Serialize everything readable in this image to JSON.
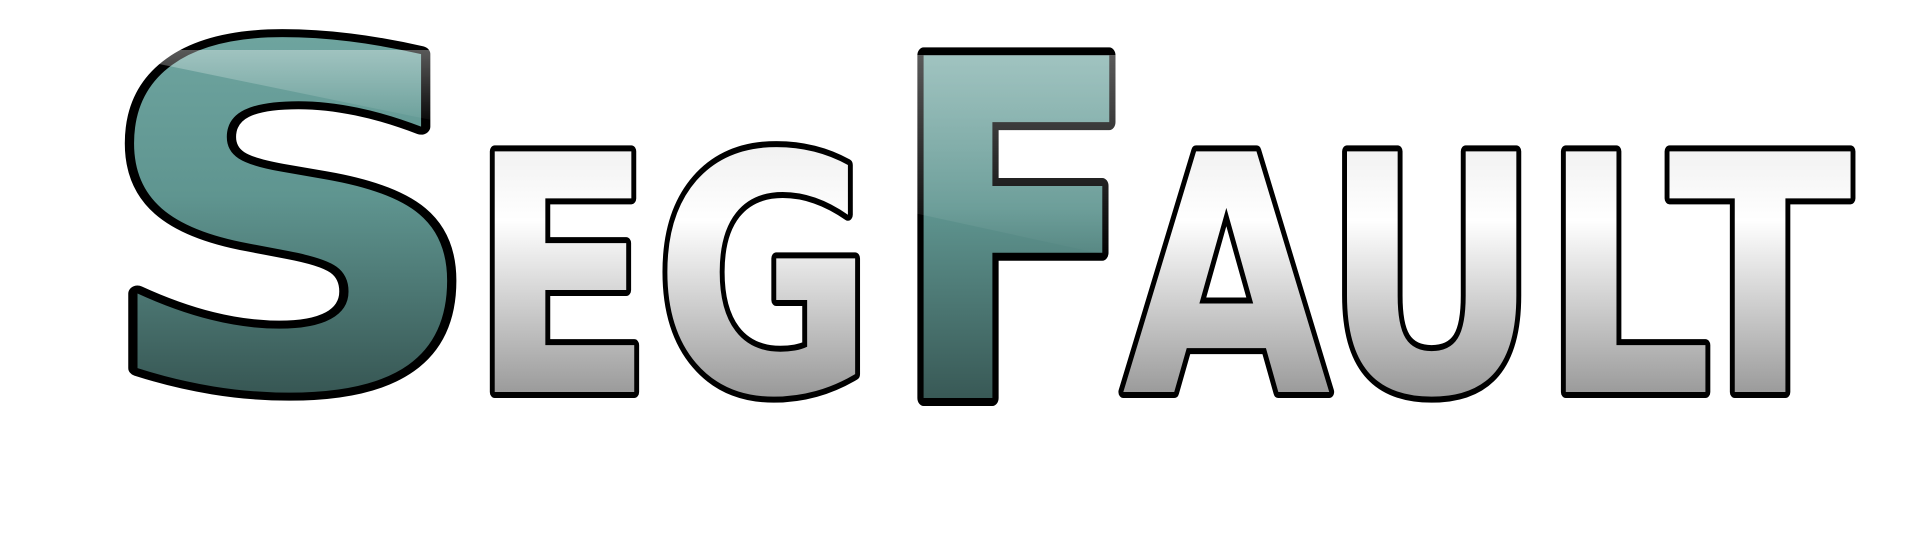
{
  "logo": {
    "parts": [
      "S",
      "EG",
      "F",
      "AULT"
    ]
  }
}
